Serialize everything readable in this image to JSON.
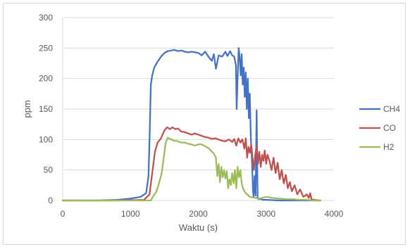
{
  "chart_data": {
    "type": "line",
    "title": "",
    "xlabel": "Waktu (s)",
    "ylabel": "ppm",
    "xlim": [
      0,
      4000
    ],
    "ylim": [
      0,
      300
    ],
    "xticks": [
      0,
      1000,
      2000,
      3000,
      4000
    ],
    "yticks": [
      0,
      50,
      100,
      150,
      200,
      250,
      300
    ],
    "grid": "horizontal",
    "legend_position": "right",
    "series": [
      {
        "name": "CH4",
        "color": "#4472C4",
        "points": [
          [
            0,
            0
          ],
          [
            500,
            0
          ],
          [
            800,
            1
          ],
          [
            1000,
            3
          ],
          [
            1150,
            6
          ],
          [
            1230,
            12
          ],
          [
            1265,
            40
          ],
          [
            1285,
            120
          ],
          [
            1300,
            190
          ],
          [
            1320,
            205
          ],
          [
            1350,
            218
          ],
          [
            1400,
            228
          ],
          [
            1450,
            236
          ],
          [
            1500,
            242
          ],
          [
            1550,
            245
          ],
          [
            1600,
            246
          ],
          [
            1650,
            247
          ],
          [
            1700,
            245
          ],
          [
            1750,
            246
          ],
          [
            1800,
            244
          ],
          [
            1850,
            243
          ],
          [
            1900,
            244
          ],
          [
            1950,
            243
          ],
          [
            2000,
            242
          ],
          [
            2050,
            238
          ],
          [
            2100,
            244
          ],
          [
            2150,
            236
          ],
          [
            2200,
            229
          ],
          [
            2230,
            240
          ],
          [
            2260,
            216
          ],
          [
            2300,
            238
          ],
          [
            2350,
            236
          ],
          [
            2400,
            244
          ],
          [
            2430,
            237
          ],
          [
            2470,
            245
          ],
          [
            2500,
            238
          ],
          [
            2530,
            236
          ],
          [
            2555,
            222
          ],
          [
            2565,
            150
          ],
          [
            2580,
            200
          ],
          [
            2595,
            250
          ],
          [
            2610,
            235
          ],
          [
            2625,
            205
          ],
          [
            2640,
            240
          ],
          [
            2655,
            190
          ],
          [
            2670,
            218
          ],
          [
            2685,
            170
          ],
          [
            2700,
            210
          ],
          [
            2715,
            150
          ],
          [
            2730,
            200
          ],
          [
            2745,
            135
          ],
          [
            2760,
            175
          ],
          [
            2775,
            100
          ],
          [
            2790,
            70
          ],
          [
            2805,
            20
          ],
          [
            2815,
            5
          ],
          [
            2830,
            40
          ],
          [
            2845,
            8
          ],
          [
            2860,
            148
          ],
          [
            2875,
            5
          ],
          [
            2890,
            2
          ],
          [
            2910,
            3
          ],
          [
            2950,
            1
          ],
          [
            3000,
            1
          ],
          [
            3200,
            0
          ],
          [
            3500,
            0
          ],
          [
            3800,
            0
          ]
        ]
      },
      {
        "name": "CO",
        "color": "#C0504D",
        "points": [
          [
            0,
            0
          ],
          [
            800,
            0
          ],
          [
            1200,
            1
          ],
          [
            1280,
            10
          ],
          [
            1320,
            45
          ],
          [
            1360,
            80
          ],
          [
            1400,
            95
          ],
          [
            1450,
            102
          ],
          [
            1500,
            115
          ],
          [
            1540,
            120
          ],
          [
            1580,
            117
          ],
          [
            1620,
            120
          ],
          [
            1660,
            117
          ],
          [
            1700,
            118
          ],
          [
            1750,
            113
          ],
          [
            1800,
            112
          ],
          [
            1850,
            110
          ],
          [
            1900,
            108
          ],
          [
            1950,
            110
          ],
          [
            2000,
            108
          ],
          [
            2050,
            106
          ],
          [
            2100,
            104
          ],
          [
            2150,
            103
          ],
          [
            2200,
            101
          ],
          [
            2250,
            102
          ],
          [
            2300,
            100
          ],
          [
            2350,
            98
          ],
          [
            2400,
            97
          ],
          [
            2450,
            100
          ],
          [
            2500,
            96
          ],
          [
            2530,
            101
          ],
          [
            2560,
            90
          ],
          [
            2590,
            102
          ],
          [
            2620,
            95
          ],
          [
            2650,
            100
          ],
          [
            2680,
            85
          ],
          [
            2700,
            102
          ],
          [
            2720,
            70
          ],
          [
            2740,
            88
          ],
          [
            2760,
            78
          ],
          [
            2780,
            92
          ],
          [
            2800,
            70
          ],
          [
            2820,
            50
          ],
          [
            2840,
            75
          ],
          [
            2860,
            90
          ],
          [
            2880,
            60
          ],
          [
            2900,
            80
          ],
          [
            2920,
            55
          ],
          [
            2940,
            75
          ],
          [
            2960,
            65
          ],
          [
            2980,
            82
          ],
          [
            3000,
            60
          ],
          [
            3020,
            75
          ],
          [
            3050,
            65
          ],
          [
            3080,
            50
          ],
          [
            3110,
            70
          ],
          [
            3140,
            45
          ],
          [
            3170,
            62
          ],
          [
            3200,
            35
          ],
          [
            3230,
            50
          ],
          [
            3260,
            28
          ],
          [
            3290,
            42
          ],
          [
            3320,
            20
          ],
          [
            3350,
            30
          ],
          [
            3380,
            15
          ],
          [
            3420,
            25
          ],
          [
            3460,
            10
          ],
          [
            3500,
            18
          ],
          [
            3550,
            6
          ],
          [
            3600,
            10
          ],
          [
            3630,
            4
          ],
          [
            3650,
            12
          ],
          [
            3670,
            2
          ],
          [
            3700,
            1
          ],
          [
            3800,
            0
          ]
        ]
      },
      {
        "name": "H2",
        "color": "#9BBB59",
        "points": [
          [
            0,
            0
          ],
          [
            1000,
            0
          ],
          [
            1300,
            0
          ],
          [
            1340,
            8
          ],
          [
            1380,
            14
          ],
          [
            1420,
            28
          ],
          [
            1460,
            45
          ],
          [
            1490,
            70
          ],
          [
            1520,
            95
          ],
          [
            1550,
            103
          ],
          [
            1600,
            100
          ],
          [
            1650,
            98
          ],
          [
            1700,
            97
          ],
          [
            1750,
            95
          ],
          [
            1800,
            95
          ],
          [
            1850,
            93
          ],
          [
            1900,
            92
          ],
          [
            1950,
            90
          ],
          [
            2000,
            92
          ],
          [
            2050,
            92
          ],
          [
            2100,
            89
          ],
          [
            2150,
            86
          ],
          [
            2200,
            80
          ],
          [
            2230,
            77
          ],
          [
            2260,
            70
          ],
          [
            2280,
            40
          ],
          [
            2300,
            60
          ],
          [
            2320,
            30
          ],
          [
            2340,
            55
          ],
          [
            2360,
            38
          ],
          [
            2380,
            50
          ],
          [
            2400,
            36
          ],
          [
            2420,
            48
          ],
          [
            2440,
            20
          ],
          [
            2460,
            35
          ],
          [
            2480,
            25
          ],
          [
            2500,
            45
          ],
          [
            2520,
            28
          ],
          [
            2540,
            50
          ],
          [
            2560,
            20
          ],
          [
            2580,
            55
          ],
          [
            2600,
            38
          ],
          [
            2620,
            50
          ],
          [
            2640,
            28
          ],
          [
            2660,
            20
          ],
          [
            2680,
            15
          ],
          [
            2700,
            12
          ],
          [
            2720,
            10
          ],
          [
            2740,
            8
          ],
          [
            2760,
            6
          ],
          [
            2800,
            5
          ],
          [
            2850,
            4
          ],
          [
            2900,
            3
          ],
          [
            3000,
            6
          ],
          [
            3100,
            4
          ],
          [
            3200,
            3
          ],
          [
            3300,
            2
          ],
          [
            3400,
            2
          ],
          [
            3500,
            1
          ],
          [
            3600,
            1
          ],
          [
            3700,
            0
          ],
          [
            3800,
            0
          ]
        ]
      }
    ]
  }
}
